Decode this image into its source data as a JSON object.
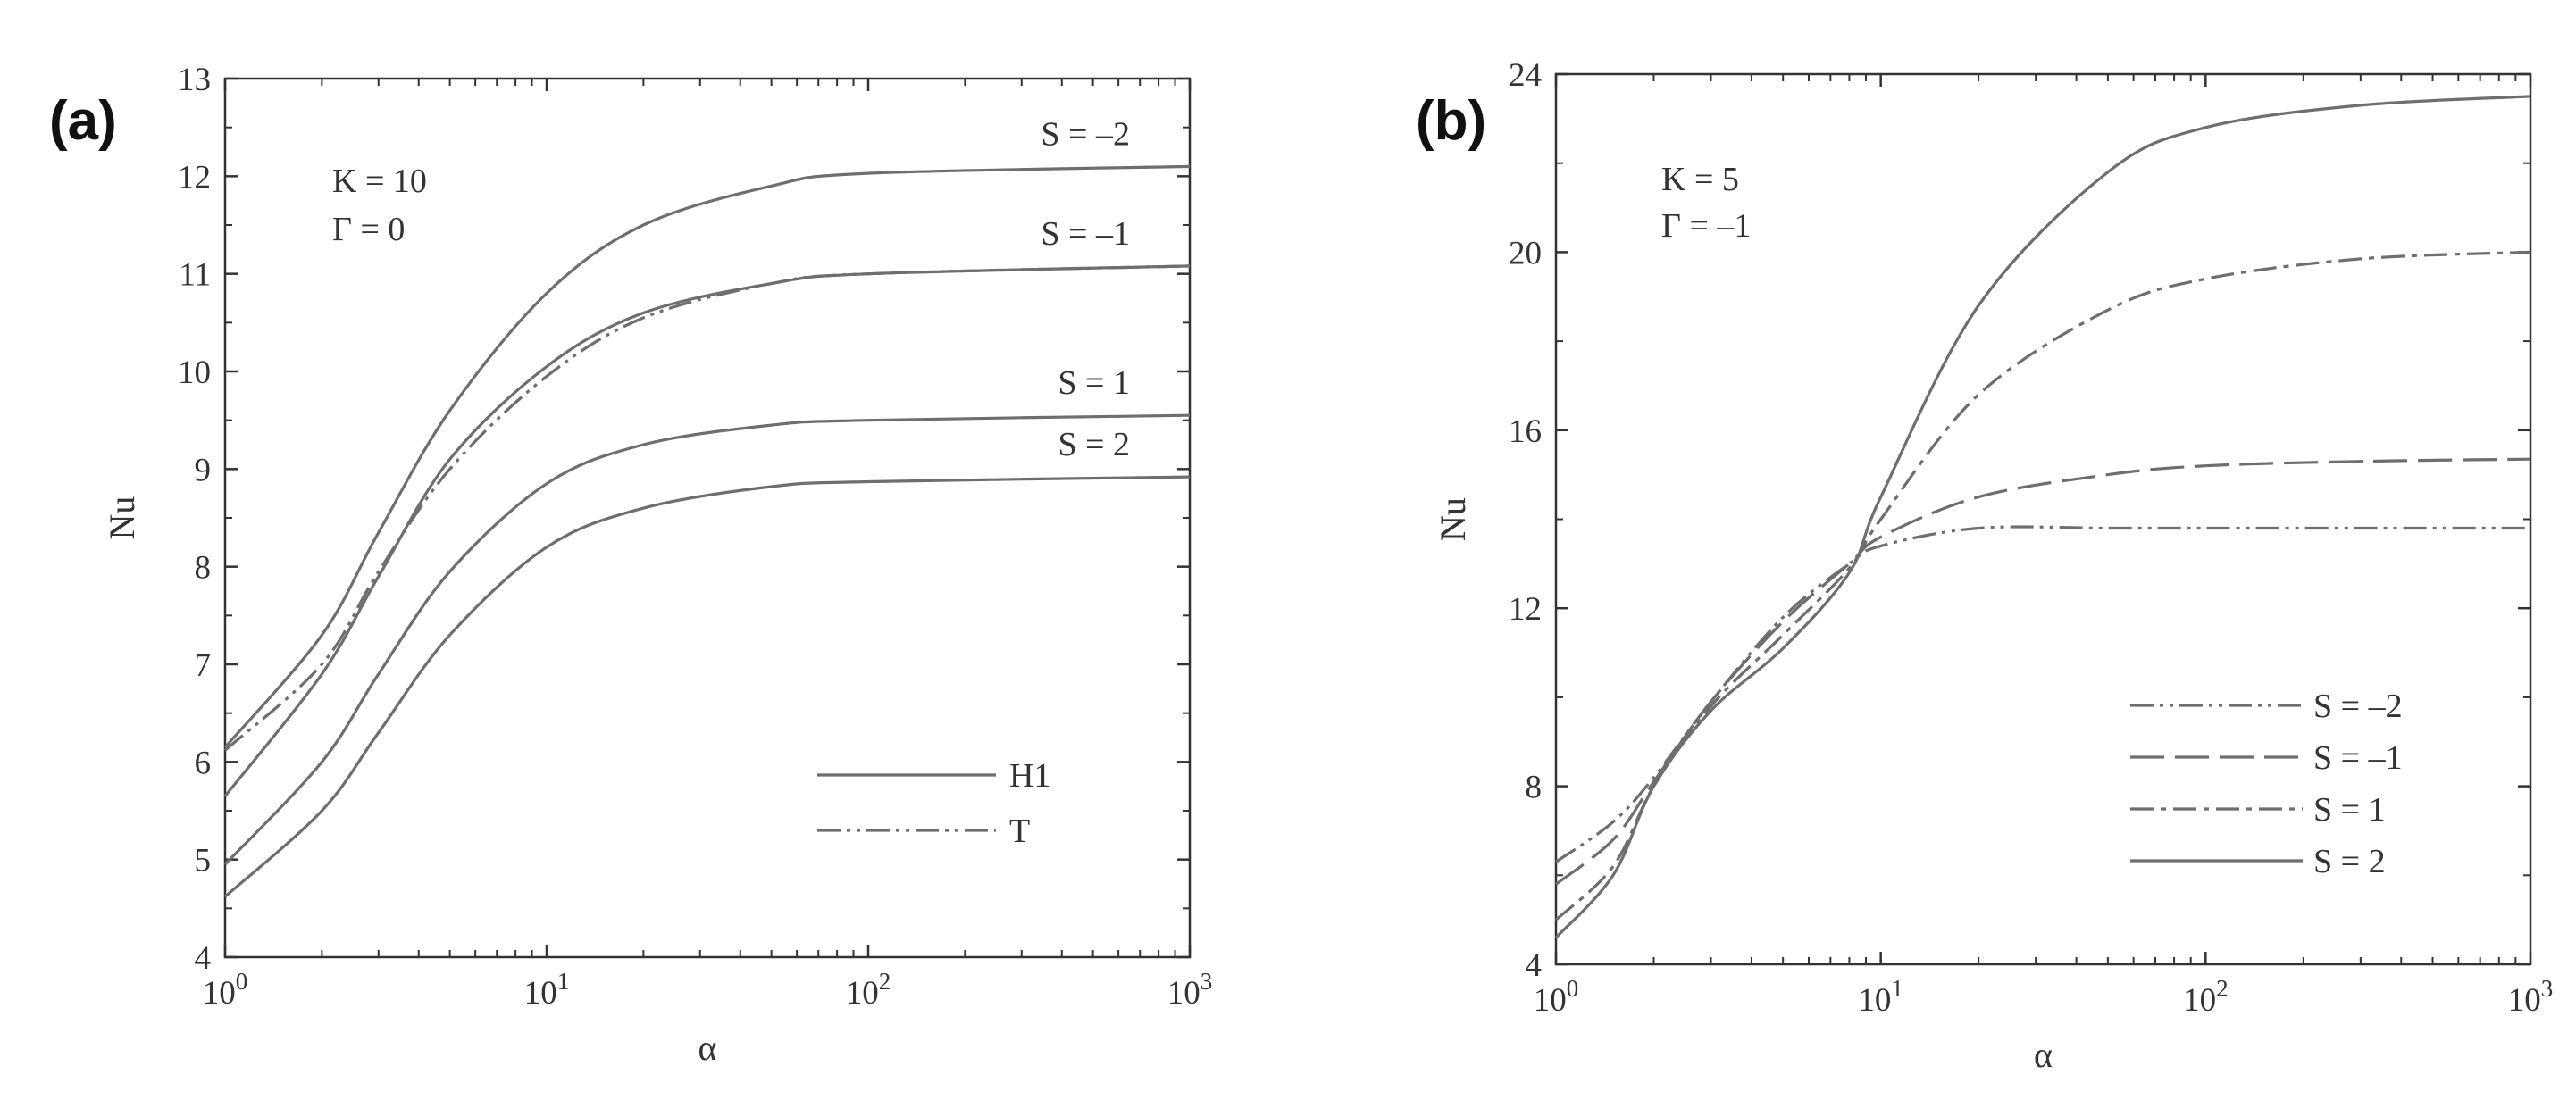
{
  "figure": {
    "panel_labels": [
      "(a)",
      "(b)"
    ]
  },
  "colors": {
    "line": "#6e6e6e",
    "axis": "#333333"
  },
  "chart_data": [
    {
      "type": "line",
      "panel": "(a)",
      "xlabel": "α",
      "ylabel": "Nu",
      "xscale": "log",
      "xlim": [
        1,
        1000
      ],
      "ylim": [
        4,
        13
      ],
      "xticks": [
        1,
        10,
        100,
        1000
      ],
      "xtick_labels": [
        {
          "base": "10",
          "exp": "0"
        },
        {
          "base": "10",
          "exp": "1"
        },
        {
          "base": "10",
          "exp": "2"
        },
        {
          "base": "10",
          "exp": "3"
        }
      ],
      "yticks": [
        4,
        5,
        6,
        7,
        8,
        9,
        10,
        11,
        12,
        13
      ],
      "ytick_labels": [
        "4",
        "5",
        "6",
        "7",
        "8",
        "9",
        "10",
        "11",
        "12",
        "13"
      ],
      "annotation": [
        "K = 10",
        "Γ = 0"
      ],
      "legend": {
        "position": "bottom-right",
        "entries": [
          {
            "label": "H1",
            "style": "solid"
          },
          {
            "label": "T",
            "style": "dashdotdot"
          }
        ]
      },
      "x": [
        1,
        2,
        3,
        5,
        10,
        20,
        50,
        100,
        1000
      ],
      "series": [
        {
          "label": "S = –2",
          "style": "solid",
          "values": [
            6.15,
            7.3,
            8.35,
            9.6,
            10.8,
            11.5,
            11.9,
            12.03,
            12.1
          ]
        },
        {
          "label": "S = –1",
          "style": "solid",
          "values": [
            5.65,
            6.9,
            7.9,
            9.1,
            10.05,
            10.6,
            10.9,
            11.0,
            11.08
          ]
        },
        {
          "label": "",
          "style": "dashdotdot",
          "values": [
            6.12,
            7.0,
            7.95,
            9.0,
            9.95,
            10.55,
            10.9,
            11.0,
            11.08
          ]
        },
        {
          "label": "S = 1",
          "style": "solid",
          "values": [
            4.95,
            6.0,
            6.9,
            7.95,
            8.85,
            9.25,
            9.45,
            9.5,
            9.55
          ]
        },
        {
          "label": "S = 2",
          "style": "solid",
          "values": [
            4.62,
            5.5,
            6.3,
            7.3,
            8.2,
            8.6,
            8.82,
            8.87,
            8.92
          ]
        }
      ]
    },
    {
      "type": "line",
      "panel": "(b)",
      "xlabel": "α",
      "ylabel": "Nu",
      "xscale": "log",
      "xlim": [
        1,
        1000
      ],
      "ylim": [
        4,
        24
      ],
      "xticks": [
        1,
        10,
        100,
        1000
      ],
      "xtick_labels": [
        {
          "base": "10",
          "exp": "0"
        },
        {
          "base": "10",
          "exp": "1"
        },
        {
          "base": "10",
          "exp": "2"
        },
        {
          "base": "10",
          "exp": "3"
        }
      ],
      "yticks": [
        4,
        8,
        12,
        16,
        20,
        24
      ],
      "ytick_labels": [
        "4",
        "8",
        "12",
        "16",
        "20",
        "24"
      ],
      "annotation": [
        "K = 5",
        "Γ = –1"
      ],
      "legend": {
        "position": "bottom-right",
        "entries": [
          {
            "label": "S = –2",
            "style": "dashdotdot"
          },
          {
            "label": "S = –1",
            "style": "longdash"
          },
          {
            "label": "S = 1",
            "style": "dashdot"
          },
          {
            "label": "S = 2",
            "style": "solid"
          }
        ]
      },
      "x": [
        1,
        1.5,
        2,
        3,
        5,
        8,
        10,
        20,
        50,
        100,
        300,
        1000
      ],
      "series": [
        {
          "label": "S = –2",
          "style": "dashdotdot",
          "values": [
            6.3,
            7.2,
            8.2,
            9.9,
            11.8,
            13.0,
            13.4,
            13.8,
            13.8,
            13.8,
            13.8,
            13.8
          ]
        },
        {
          "label": "S = –1",
          "style": "longdash",
          "values": [
            5.8,
            6.8,
            8.1,
            9.9,
            11.7,
            13.0,
            13.6,
            14.5,
            15.0,
            15.2,
            15.3,
            15.35
          ]
        },
        {
          "label": "S = 1",
          "style": "dashdot",
          "values": [
            5.0,
            6.2,
            8.0,
            9.8,
            11.4,
            12.9,
            14.0,
            16.8,
            18.7,
            19.4,
            19.85,
            20.0
          ]
        },
        {
          "label": "S = 2",
          "style": "solid",
          "values": [
            4.6,
            6.0,
            8.0,
            9.7,
            11.1,
            12.8,
            14.5,
            18.8,
            21.8,
            22.8,
            23.3,
            23.5
          ]
        }
      ]
    }
  ]
}
